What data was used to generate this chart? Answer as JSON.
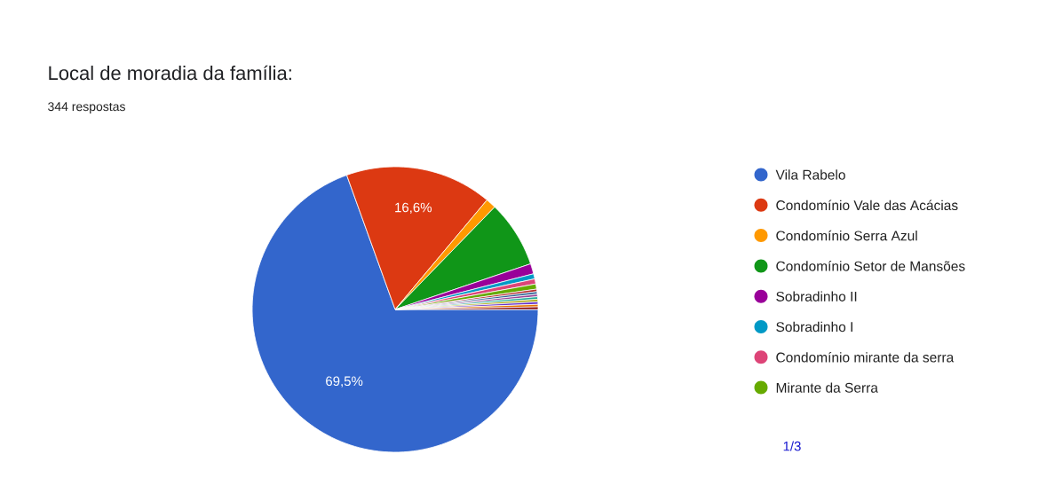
{
  "chart_data": {
    "type": "pie",
    "title": "Local de moradia da família:",
    "subtitle": "344 respostas",
    "categories": [
      "Vila Rabelo",
      "Condomínio Vale das Acácias",
      "Condomínio Serra Azul",
      "Condomínio Setor de Mansões",
      "Sobradinho II",
      "Sobradinho I",
      "Condomínio mirante da serra",
      "Mirante da Serra",
      null,
      null,
      null,
      null,
      null,
      null,
      null,
      null
    ],
    "values": [
      69.5,
      16.6,
      1.16,
      7.56,
      1.16,
      0.58,
      0.58,
      0.58,
      0.285,
      0.285,
      0.285,
      0.285,
      0.285,
      0.285,
      0.285,
      0.285
    ],
    "colors": [
      "#3366cc",
      "#dc3912",
      "#ff9900",
      "#109618",
      "#990099",
      "#0099c6",
      "#dd4477",
      "#66aa00",
      "#b82e2e",
      "#316395",
      "#994499",
      "#22aa99",
      "#aaaa11",
      "#6633cc",
      "#e67300",
      "#8b0707"
    ],
    "value_labels": [
      "69,5%",
      "16,6%",
      null,
      null,
      null,
      null,
      null,
      null,
      null,
      null,
      null,
      null,
      null,
      null,
      null,
      null
    ],
    "legend": "right",
    "annotations": [
      "1/3"
    ]
  }
}
